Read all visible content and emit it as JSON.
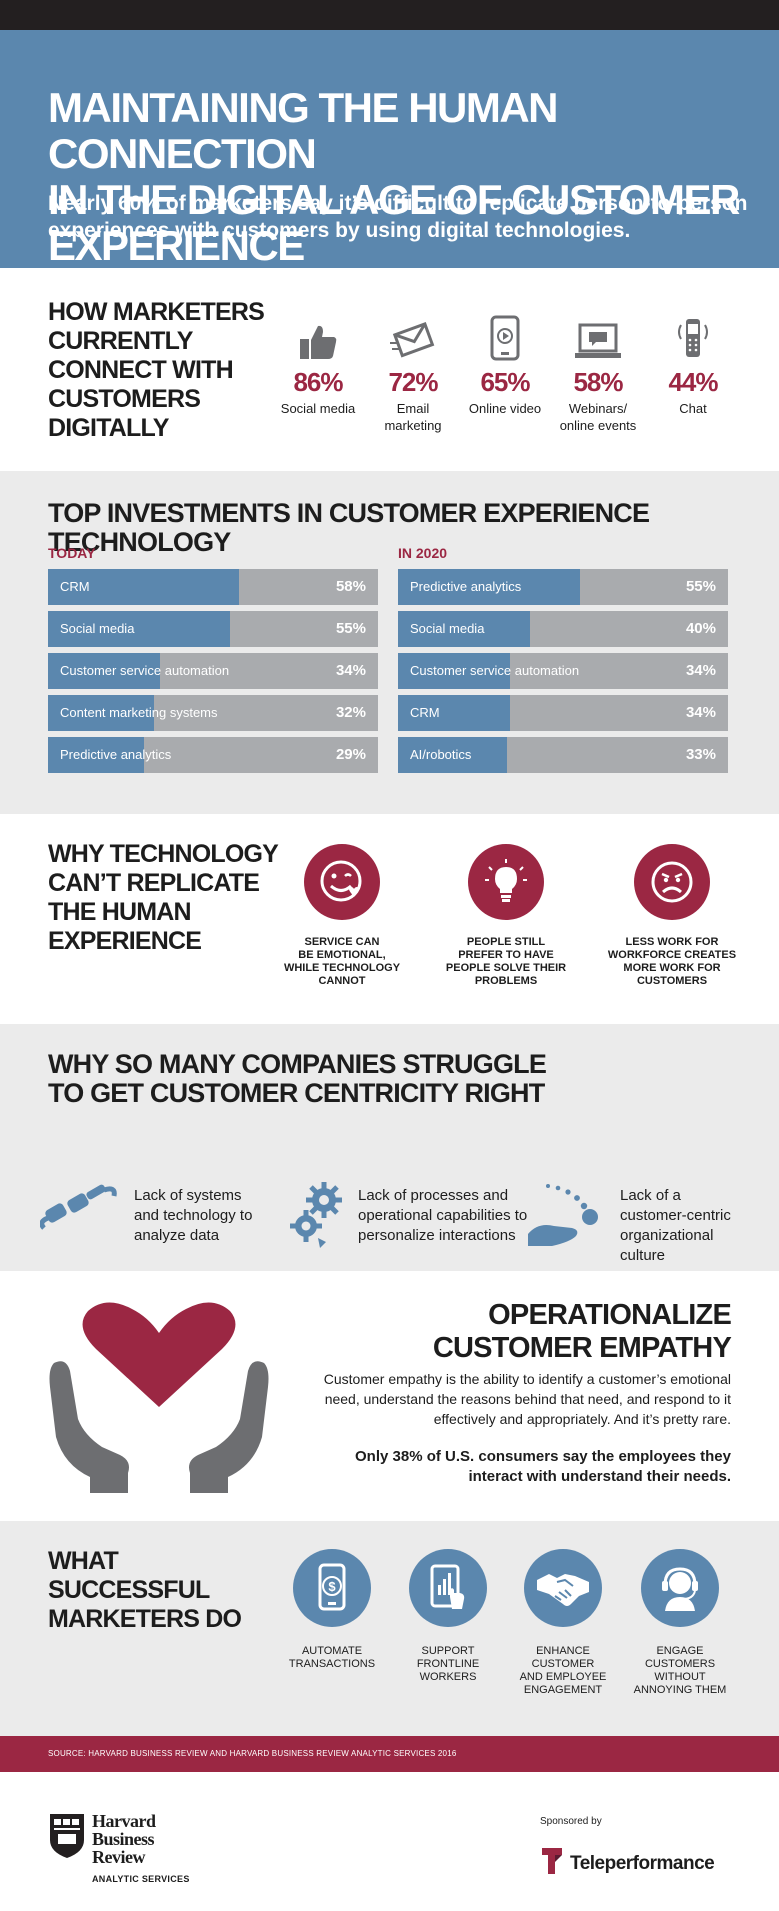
{
  "header": {
    "title_line1": "MAINTAINING THE HUMAN CONNECTION",
    "title_line2": "IN THE DIGITAL AGE OF CUSTOMER EXPERIENCE",
    "subtitle": "Nearly 60% of marketers say it’s difficult to replicate person-to-person experiences with customers by using digital technologies."
  },
  "connect": {
    "heading": "HOW MARKETERS CURRENTLY CONNECT WITH CUSTOMERS DIGITALLY",
    "channels": [
      {
        "icon": "thumbs-up-icon",
        "pct": "86%",
        "label_1": "Social media",
        "label_2": ""
      },
      {
        "icon": "envelope-icon",
        "pct": "72%",
        "label_1": "Email",
        "label_2": "marketing"
      },
      {
        "icon": "phone-video-icon",
        "pct": "65%",
        "label_1": "Online video",
        "label_2": ""
      },
      {
        "icon": "laptop-chat-icon",
        "pct": "58%",
        "label_1": "Webinars/",
        "label_2": "online events"
      },
      {
        "icon": "phone-chat-icon",
        "pct": "44%",
        "label_1": "Chat",
        "label_2": ""
      }
    ]
  },
  "investments": {
    "heading": "TOP INVESTMENTS IN CUSTOMER EXPERIENCE TECHNOLOGY",
    "today_label": "TODAY",
    "future_label": "IN 2020",
    "today": [
      {
        "label": "CRM",
        "value": 58,
        "text": "58%"
      },
      {
        "label": "Social media",
        "value": 55,
        "text": "55%"
      },
      {
        "label": "Customer service automation",
        "value": 34,
        "text": "34%"
      },
      {
        "label": "Content marketing systems",
        "value": 32,
        "text": "32%"
      },
      {
        "label": "Predictive analytics",
        "value": 29,
        "text": "29%"
      }
    ],
    "future": [
      {
        "label": "Predictive analytics",
        "value": 55,
        "text": "55%"
      },
      {
        "label": "Social media",
        "value": 40,
        "text": "40%"
      },
      {
        "label": "Customer service automation",
        "value": 34,
        "text": "34%"
      },
      {
        "label": "CRM",
        "value": 34,
        "text": "34%"
      },
      {
        "label": "AI/robotics",
        "value": 33,
        "text": "33%"
      }
    ]
  },
  "whytech": {
    "heading": "WHY TECHNOLOGY CAN’T REPLICATE THE HUMAN EXPERIENCE",
    "reasons": [
      {
        "icon": "smiley-heart-icon",
        "l1": "SERVICE CAN",
        "l2": "BE EMOTIONAL,",
        "l3": "WHILE TECHNOLOGY",
        "l4": "CANNOT"
      },
      {
        "icon": "lightbulb-icon",
        "l1": "PEOPLE STILL",
        "l2": "PREFER TO HAVE",
        "l3": "PEOPLE SOLVE THEIR",
        "l4": "PROBLEMS"
      },
      {
        "icon": "angry-face-icon",
        "l1": "LESS WORK FOR",
        "l2": "WORKFORCE CREATES",
        "l3": "MORE WORK FOR",
        "l4": "CUSTOMERS"
      }
    ]
  },
  "struggle": {
    "heading_1": "WHY SO MANY COMPANIES STRUGGLE",
    "heading_2": "TO GET CUSTOMER CENTRICITY RIGHT",
    "items": [
      {
        "icon": "plug-icon",
        "l1": "Lack of systems",
        "l2": "and technology to",
        "l3": "analyze data",
        "l4": ""
      },
      {
        "icon": "gears-icon",
        "l1": "Lack of processes and",
        "l2": "operational capabilities to",
        "l3": "personalize interactions",
        "l4": ""
      },
      {
        "icon": "hand-ball-icon",
        "l1": "Lack of a",
        "l2": "customer-centric",
        "l3": "organizational",
        "l4": "culture"
      }
    ]
  },
  "empathy": {
    "heading_1": "OPERATIONALIZE",
    "heading_2": "CUSTOMER EMPATHY",
    "body": "Customer empathy is the ability to identify a customer’s emotional need, understand the reasons behind that need, and respond to it effectively and appropriately. And it’s pretty rare.",
    "stat": "Only 38% of U.S. consumers say the employees they interact with understand their needs."
  },
  "success": {
    "heading": "WHAT SUCCESSFUL MARKETERS DO",
    "actions": [
      {
        "icon": "phone-dollar-icon",
        "l1": "AUTOMATE",
        "l2": "TRANSACTIONS",
        "l3": "",
        "l4": ""
      },
      {
        "icon": "tablet-touch-icon",
        "l1": "SUPPORT",
        "l2": "FRONTLINE",
        "l3": "WORKERS",
        "l4": ""
      },
      {
        "icon": "handshake-icon",
        "l1": "ENHANCE",
        "l2": "CUSTOMER",
        "l3": "AND EMPLOYEE",
        "l4": "ENGAGEMENT"
      },
      {
        "icon": "headset-agent-icon",
        "l1": "ENGAGE",
        "l2": "CUSTOMERS",
        "l3": "WITHOUT",
        "l4": "ANNOYING THEM"
      }
    ]
  },
  "source": "SOURCE: HARVARD BUSINESS REVIEW AND HARVARD BUSINESS REVIEW ANALYTIC SERVICES 2016",
  "footer": {
    "hbr_1": "Harvard",
    "hbr_2": "Business",
    "hbr_3": "Review",
    "hbr_services": "ANALYTIC SERVICES",
    "sponsored": "Sponsored by",
    "sponsor_name": "Teleperformance"
  },
  "colors": {
    "blue": "#5b87ae",
    "crimson": "#9b2743",
    "gray": "#a9abae",
    "light": "#ebebeb",
    "dark": "#231f20"
  }
}
